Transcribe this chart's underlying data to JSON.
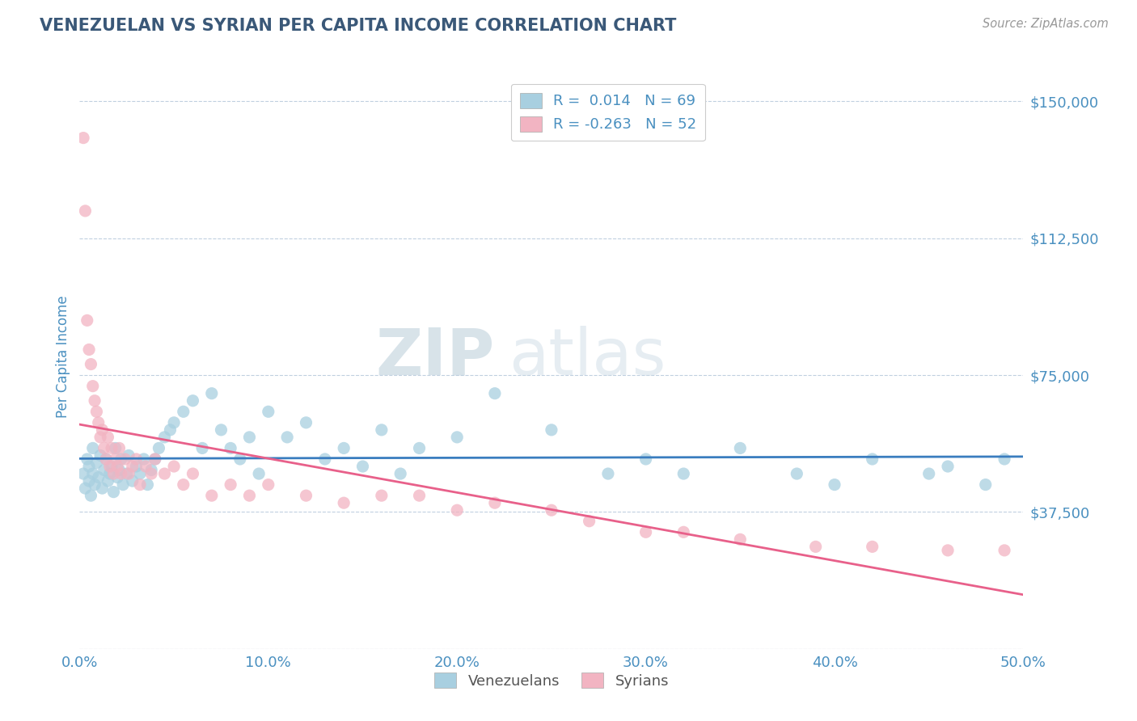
{
  "title": "VENEZUELAN VS SYRIAN PER CAPITA INCOME CORRELATION CHART",
  "source": "Source: ZipAtlas.com",
  "ylabel": "Per Capita Income",
  "xlim": [
    0.0,
    0.5
  ],
  "ylim": [
    0,
    160000
  ],
  "yticks": [
    0,
    37500,
    75000,
    112500,
    150000
  ],
  "ytick_labels": [
    "",
    "$37,500",
    "$75,000",
    "$112,500",
    "$150,000"
  ],
  "xtick_labels": [
    "0.0%",
    "10.0%",
    "20.0%",
    "30.0%",
    "40.0%",
    "50.0%"
  ],
  "xticks": [
    0.0,
    0.1,
    0.2,
    0.3,
    0.4,
    0.5
  ],
  "venezuelan_color": "#a8cfe0",
  "syrian_color": "#f2b4c2",
  "venezuelan_line_color": "#3a7dbf",
  "syrian_line_color": "#e8608a",
  "title_color": "#3a5878",
  "axis_color": "#4a90c0",
  "source_color": "#999999",
  "legend_label1": "R =  0.014   N = 69",
  "legend_label2": "R = -0.263   N = 52",
  "legend_group1": "Venezuelans",
  "legend_group2": "Syrians",
  "watermark_zip": "ZIP",
  "watermark_atlas": "atlas",
  "background_color": "#ffffff",
  "grid_color": "#c0d0e0",
  "venezuelan_x": [
    0.002,
    0.003,
    0.004,
    0.005,
    0.005,
    0.006,
    0.007,
    0.007,
    0.008,
    0.009,
    0.01,
    0.011,
    0.012,
    0.013,
    0.014,
    0.015,
    0.016,
    0.017,
    0.018,
    0.019,
    0.02,
    0.021,
    0.022,
    0.023,
    0.025,
    0.026,
    0.028,
    0.03,
    0.032,
    0.034,
    0.036,
    0.038,
    0.04,
    0.042,
    0.045,
    0.048,
    0.05,
    0.055,
    0.06,
    0.065,
    0.07,
    0.075,
    0.08,
    0.085,
    0.09,
    0.095,
    0.1,
    0.11,
    0.12,
    0.13,
    0.14,
    0.15,
    0.16,
    0.17,
    0.18,
    0.2,
    0.22,
    0.25,
    0.28,
    0.3,
    0.32,
    0.35,
    0.38,
    0.4,
    0.42,
    0.45,
    0.46,
    0.48,
    0.49
  ],
  "venezuelan_y": [
    48000,
    44000,
    52000,
    46000,
    50000,
    42000,
    55000,
    48000,
    45000,
    51000,
    47000,
    53000,
    44000,
    49000,
    52000,
    46000,
    48000,
    50000,
    43000,
    55000,
    47000,
    49000,
    52000,
    45000,
    48000,
    53000,
    46000,
    50000,
    48000,
    52000,
    45000,
    49000,
    52000,
    55000,
    58000,
    60000,
    62000,
    65000,
    68000,
    55000,
    70000,
    60000,
    55000,
    52000,
    58000,
    48000,
    65000,
    58000,
    62000,
    52000,
    55000,
    50000,
    60000,
    48000,
    55000,
    58000,
    70000,
    60000,
    48000,
    52000,
    48000,
    55000,
    48000,
    45000,
    52000,
    48000,
    50000,
    45000,
    52000
  ],
  "syrian_x": [
    0.002,
    0.003,
    0.004,
    0.005,
    0.006,
    0.007,
    0.008,
    0.009,
    0.01,
    0.011,
    0.012,
    0.013,
    0.014,
    0.015,
    0.016,
    0.017,
    0.018,
    0.019,
    0.02,
    0.021,
    0.022,
    0.024,
    0.026,
    0.028,
    0.03,
    0.032,
    0.035,
    0.038,
    0.04,
    0.045,
    0.05,
    0.055,
    0.06,
    0.07,
    0.08,
    0.09,
    0.1,
    0.12,
    0.14,
    0.16,
    0.18,
    0.2,
    0.22,
    0.25,
    0.27,
    0.3,
    0.32,
    0.35,
    0.39,
    0.42,
    0.46,
    0.49
  ],
  "syrian_y": [
    140000,
    120000,
    90000,
    82000,
    78000,
    72000,
    68000,
    65000,
    62000,
    58000,
    60000,
    55000,
    52000,
    58000,
    50000,
    55000,
    48000,
    52000,
    50000,
    55000,
    48000,
    52000,
    48000,
    50000,
    52000,
    45000,
    50000,
    48000,
    52000,
    48000,
    50000,
    45000,
    48000,
    42000,
    45000,
    42000,
    45000,
    42000,
    40000,
    42000,
    42000,
    38000,
    40000,
    38000,
    35000,
    32000,
    32000,
    30000,
    28000,
    28000,
    27000,
    27000
  ]
}
